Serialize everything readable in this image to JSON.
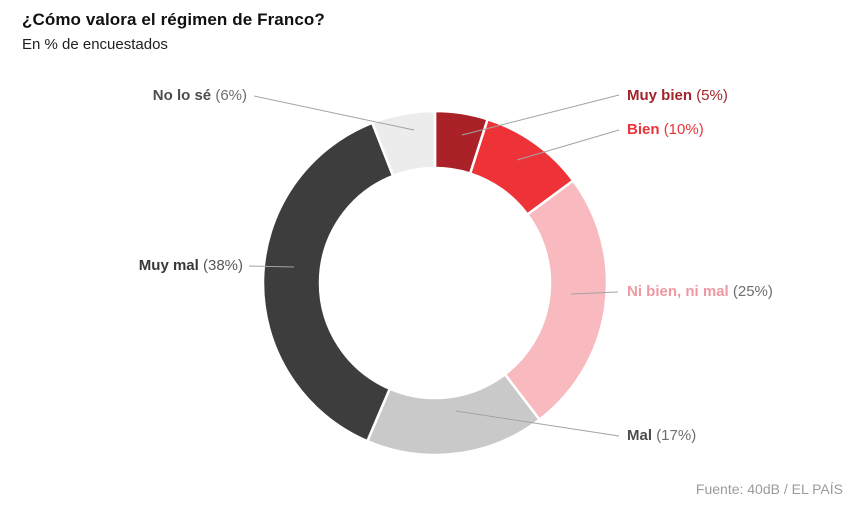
{
  "header": {
    "title": "¿Cómo valora el régimen de Franco?",
    "subtitle": "En % de encuestados"
  },
  "source": "Fuente: 40dB / EL PAÍS",
  "chart_data": {
    "type": "pie",
    "variant": "donut",
    "title": "¿Cómo valora el régimen de Franco?",
    "subtitle": "En % de encuestados",
    "unit": "%",
    "categories": [
      "Muy bien",
      "Bien",
      "Ni bien, ni mal",
      "Mal",
      "Muy mal",
      "No lo sé"
    ],
    "values": [
      5,
      10,
      25,
      17,
      38,
      6
    ],
    "colors": [
      "#aa2127",
      "#ee3338",
      "#f8b9bf",
      "#c9c9c9",
      "#3d3d3d",
      "#ececec"
    ],
    "start_angle_deg": 0,
    "direction": "clockwise",
    "inner_radius_ratio": 0.67,
    "legend_position": "labels-with-leader-lines",
    "source": "Fuente: 40dB / EL PAÍS"
  },
  "labels": [
    {
      "name": "Muy bien",
      "pct": "(5%)",
      "name_color": "#a32429",
      "pct_color": "#a32429"
    },
    {
      "name": "Bien",
      "pct": "(10%)",
      "name_color": "#e8353b",
      "pct_color": "#e8353b"
    },
    {
      "name": "Ni bien, ni mal",
      "pct": "(25%)",
      "name_color": "#ee99a1",
      "pct_color": "#6e6e6e"
    },
    {
      "name": "Mal",
      "pct": "(17%)",
      "name_color": "#4d4d4d",
      "pct_color": "#6e6e6e"
    },
    {
      "name": "Muy mal",
      "pct": "(38%)",
      "name_color": "#383838",
      "pct_color": "#595959"
    },
    {
      "name": "No lo sé",
      "pct": "(6%)",
      "name_color": "#4d4d4d",
      "pct_color": "#6e6e6e"
    }
  ],
  "style": {
    "leader_line_color": "#a3a3a3",
    "segment_gap_color": "#ffffff"
  }
}
